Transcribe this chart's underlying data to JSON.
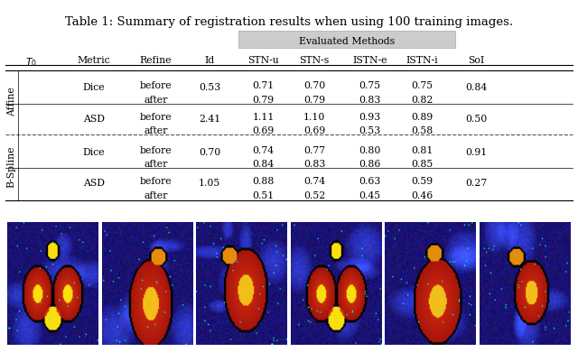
{
  "title": "Table 1: Summary of registration results when using 100 training images.",
  "title_fontsize": 9.5,
  "fig_bg": "#ffffff",
  "table": {
    "header_group_label": "Evaluated Methods",
    "col_headers": [
      "T0",
      "Metric",
      "Refine",
      "Id",
      "STN-u",
      "STN-s",
      "ISTN-e",
      "ISTN-i",
      "SoI"
    ],
    "header_bg": "#cccccc",
    "rows": [
      {
        "T0": "Affine",
        "metric": "Dice",
        "refine": [
          "before",
          "after"
        ],
        "id": "0.53",
        "stn_u": [
          "0.71",
          "0.79"
        ],
        "stn_s": [
          "0.70",
          "0.79"
        ],
        "istn_e": [
          "0.75",
          "0.83"
        ],
        "istn_i": [
          "0.75",
          "0.82"
        ],
        "sol": "0.84"
      },
      {
        "T0": "Affine",
        "metric": "ASD",
        "refine": [
          "before",
          "after"
        ],
        "id": "2.41",
        "stn_u": [
          "1.11",
          "0.69"
        ],
        "stn_s": [
          "1.10",
          "0.69"
        ],
        "istn_e": [
          "0.93",
          "0.53"
        ],
        "istn_i": [
          "0.89",
          "0.58"
        ],
        "sol": "0.50"
      },
      {
        "T0": "B-Spline",
        "metric": "Dice",
        "refine": [
          "before",
          "after"
        ],
        "id": "0.70",
        "stn_u": [
          "0.74",
          "0.84"
        ],
        "stn_s": [
          "0.77",
          "0.83"
        ],
        "istn_e": [
          "0.80",
          "0.86"
        ],
        "istn_i": [
          "0.81",
          "0.85"
        ],
        "sol": "0.91"
      },
      {
        "T0": "B-Spline",
        "metric": "ASD",
        "refine": [
          "before",
          "after"
        ],
        "id": "1.05",
        "stn_u": [
          "0.88",
          "0.51"
        ],
        "stn_s": [
          "0.74",
          "0.52"
        ],
        "istn_e": [
          "0.63",
          "0.45"
        ],
        "istn_i": [
          "0.59",
          "0.46"
        ],
        "sol": "0.27"
      }
    ]
  }
}
